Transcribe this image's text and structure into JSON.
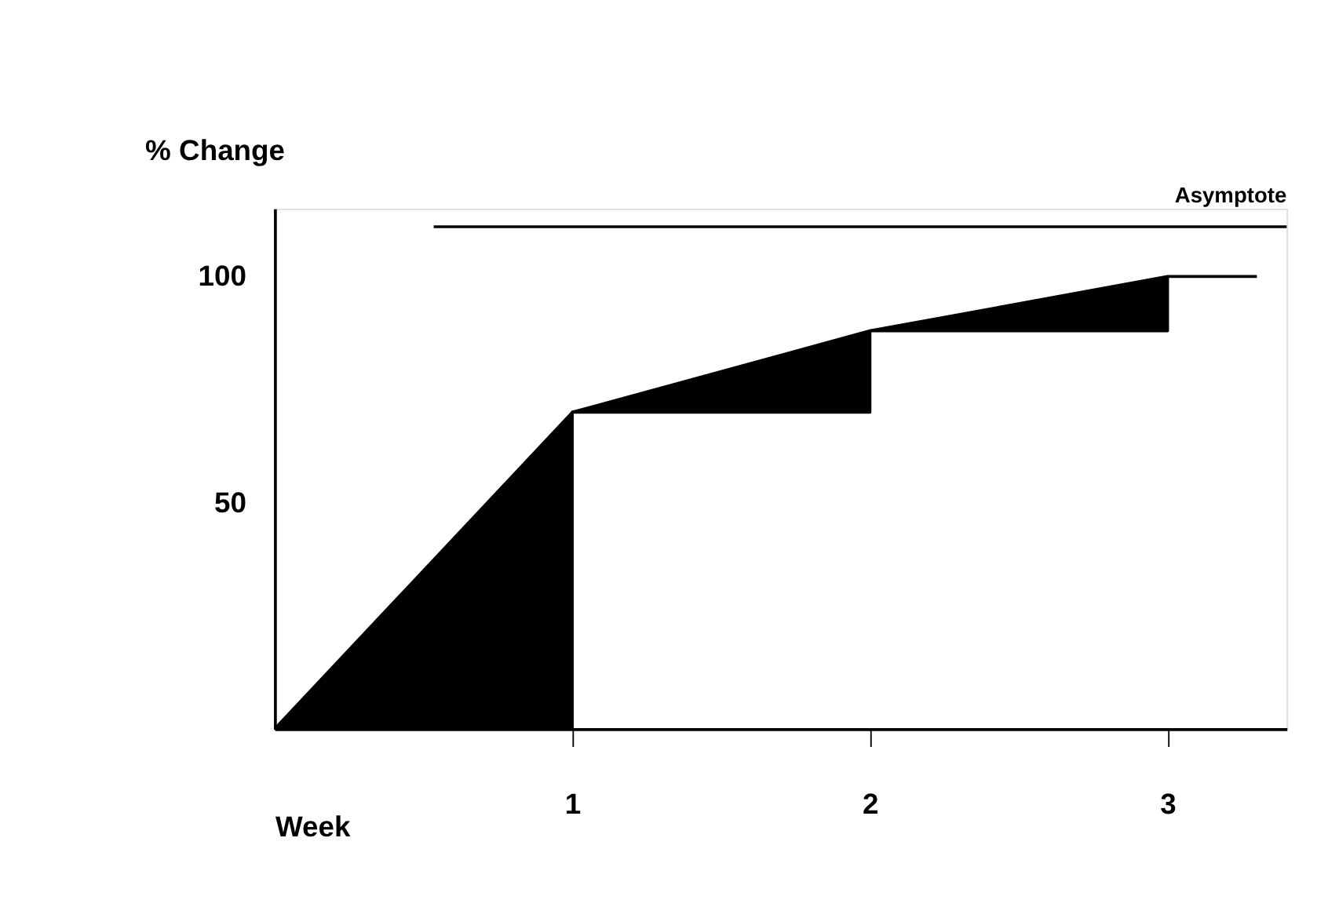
{
  "chart_data": {
    "type": "area",
    "xlabel": "Week",
    "ylabel": "% Change",
    "series": [
      {
        "color": "#000000",
        "x": [
          0,
          1,
          2,
          3
        ],
        "values": [
          0,
          70,
          88,
          100
        ]
      },
      {
        "type": "step",
        "color": "#000000",
        "x": [
          0,
          1,
          2,
          3,
          3.3
        ],
        "values": [
          0,
          70,
          88,
          100,
          100
        ]
      }
    ],
    "xlim": [
      0,
      3.4
    ],
    "xticks": [
      1,
      2,
      3
    ],
    "ylim": [
      0,
      115
    ],
    "yticks": [
      50,
      100
    ],
    "grid": false,
    "ref_lines": [
      {
        "axis": "y",
        "value": 111,
        "label": "Asymptote",
        "color": "#000000"
      }
    ]
  }
}
